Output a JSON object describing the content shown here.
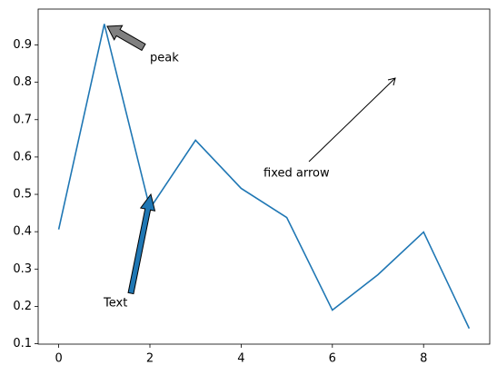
{
  "chart_data": {
    "type": "line",
    "x": [
      0,
      1,
      2,
      3,
      4,
      5,
      6,
      7,
      8,
      9
    ],
    "series": [
      {
        "color": "#1f77b4",
        "values": [
          0.406,
          0.956,
          0.462,
          0.645,
          0.516,
          0.438,
          0.19,
          0.285,
          0.399,
          0.141
        ]
      }
    ],
    "xlim": [
      -0.45,
      9.45
    ],
    "xticks": [
      0,
      2,
      4,
      6,
      8
    ],
    "ylim": [
      0.099,
      0.996
    ],
    "yticks": [
      0.1,
      0.2,
      0.3,
      0.4,
      0.5,
      0.6,
      0.7,
      0.8,
      0.9
    ],
    "grid": false,
    "annotations": [
      "peak",
      "Text",
      "fixed arrow"
    ]
  }
}
